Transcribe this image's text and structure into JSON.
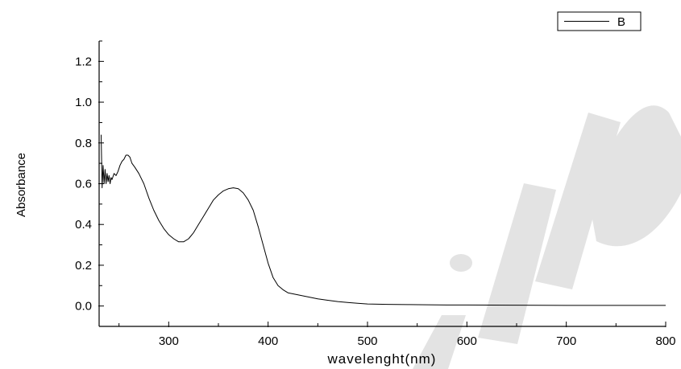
{
  "chart_data": {
    "type": "line",
    "title": "",
    "xlabel": "wavelenght(nm)",
    "ylabel": "Absorbance",
    "xlim": [
      230,
      800
    ],
    "ylim": [
      -0.1,
      1.3
    ],
    "xticks": [
      300,
      400,
      500,
      600,
      700,
      800
    ],
    "xtick_labels": [
      "300",
      "400",
      "500",
      "600",
      "700",
      "800"
    ],
    "yticks": [
      0.0,
      0.2,
      0.4,
      0.6,
      0.8,
      1.0,
      1.2
    ],
    "ytick_labels": [
      "0.0",
      "0.2",
      "0.4",
      "0.6",
      "0.8",
      "1.0",
      "1.2"
    ],
    "grid": false,
    "legend_position": "top-right",
    "series": [
      {
        "name": "B",
        "color": "#000000",
        "x": [
          232,
          233,
          234,
          235,
          236,
          237,
          238,
          239,
          240,
          241,
          242,
          243,
          245,
          247,
          249,
          251,
          253,
          255,
          257,
          259,
          261,
          263,
          266,
          270,
          275,
          280,
          285,
          290,
          295,
          300,
          305,
          310,
          315,
          320,
          325,
          330,
          335,
          340,
          345,
          350,
          355,
          360,
          365,
          370,
          375,
          380,
          385,
          390,
          395,
          400,
          405,
          410,
          415,
          420,
          430,
          440,
          450,
          460,
          470,
          480,
          490,
          500,
          520,
          540,
          560,
          580,
          600,
          650,
          700,
          750,
          800
        ],
        "y": [
          0.84,
          0.58,
          0.69,
          0.6,
          0.67,
          0.6,
          0.65,
          0.61,
          0.64,
          0.6,
          0.63,
          0.62,
          0.65,
          0.64,
          0.66,
          0.69,
          0.71,
          0.72,
          0.74,
          0.74,
          0.73,
          0.7,
          0.68,
          0.65,
          0.6,
          0.53,
          0.47,
          0.42,
          0.38,
          0.35,
          0.33,
          0.315,
          0.315,
          0.33,
          0.36,
          0.4,
          0.44,
          0.48,
          0.52,
          0.545,
          0.565,
          0.575,
          0.58,
          0.575,
          0.555,
          0.52,
          0.47,
          0.39,
          0.3,
          0.21,
          0.14,
          0.1,
          0.08,
          0.065,
          0.055,
          0.045,
          0.035,
          0.028,
          0.022,
          0.017,
          0.013,
          0.01,
          0.008,
          0.007,
          0.006,
          0.005,
          0.005,
          0.004,
          0.003,
          0.003,
          0.003
        ]
      }
    ]
  }
}
